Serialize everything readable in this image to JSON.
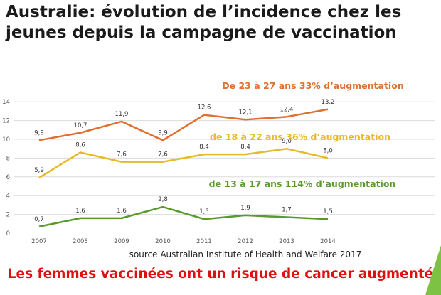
{
  "title_line1": "Australie: évolution de l’incidence chez les",
  "title_line2": "jeunes depuis la campagne de vaccination",
  "source": "source Australian Institute of Health and Welfare 2017",
  "footer": "Les femmes vaccinées ont un risque de cancer augmenté",
  "colors": {
    "orange": "#e0702f",
    "yellow": "#e8b928",
    "green": "#5a9a2c",
    "footer": "#e01010",
    "accent_triangle": "#7dc242"
  },
  "chart_data": {
    "type": "line",
    "x": [
      "2007",
      "2008",
      "2009",
      "2010",
      "2011",
      "2012",
      "2013",
      "2014"
    ],
    "ylim": [
      0,
      14
    ],
    "yticks": [
      0,
      2,
      4,
      6,
      8,
      10,
      12,
      14
    ],
    "grid": true,
    "series": [
      {
        "name": "De 23 à 27 ans 33% d’augmentation",
        "color": "#e0702f",
        "values": [
          9.9,
          10.7,
          11.9,
          9.9,
          12.6,
          12.1,
          12.4,
          13.2
        ],
        "labels": [
          "9,9",
          "10,7",
          "11,9",
          "9,9",
          "12,6",
          "12,1",
          "12,4",
          "13,2"
        ]
      },
      {
        "name": "de 18 à 22 ans 36% d’augmentation",
        "color": "#e8b928",
        "values": [
          5.9,
          8.6,
          7.6,
          7.6,
          8.4,
          8.4,
          9.0,
          8.0
        ],
        "labels": [
          "5,9",
          "8,6",
          "7,6",
          "7,6",
          "8,4",
          "8,4",
          "9,0",
          "8,0"
        ]
      },
      {
        "name": "de 13 à 17 ans 114% d’augmentation",
        "color": "#5a9a2c",
        "values": [
          0.7,
          1.6,
          1.6,
          2.8,
          1.5,
          1.9,
          1.7,
          1.5
        ],
        "labels": [
          "0,7",
          "1,6",
          "1,6",
          "2,8",
          "1,5",
          "1,9",
          "1,7",
          "1,5"
        ]
      }
    ]
  }
}
